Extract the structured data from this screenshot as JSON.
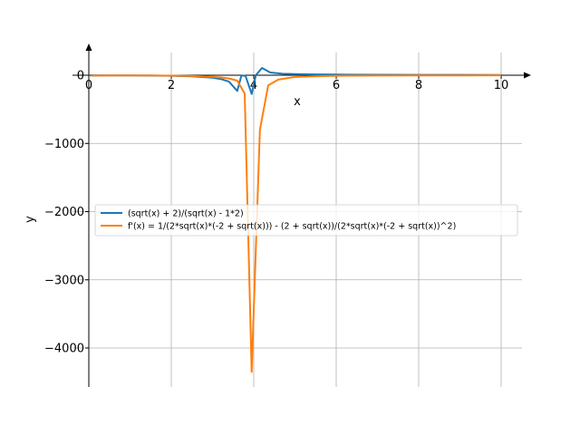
{
  "chart_data": {
    "type": "line",
    "title": "",
    "xlabel": "x",
    "ylabel": "y",
    "xlim": [
      0,
      10.5
    ],
    "ylim": [
      -4600,
      430
    ],
    "grid": true,
    "legend_position": "center-right",
    "x_ticks": [
      0,
      2,
      4,
      6,
      8,
      10
    ],
    "x_tick_labels": [
      "0",
      "2",
      "4",
      "6",
      "8",
      "10"
    ],
    "y_ticks": [
      0,
      -1000,
      -2000,
      -3000,
      -4000
    ],
    "y_tick_labels": [
      "0",
      "−1000",
      "−2000",
      "−3000",
      "−4000"
    ],
    "series": [
      {
        "name": "(sqrt(x) + 2)/(sqrt(x) - 1*2)",
        "color": "#1f77b4",
        "x": [
          0,
          0.5,
          1.0,
          1.5,
          2.0,
          2.5,
          3.0,
          3.2,
          3.4,
          3.6,
          3.7,
          3.8,
          3.95,
          4.05,
          4.2,
          4.4,
          4.7,
          5.0,
          5.5,
          6.0,
          7.0,
          8.0,
          9.0,
          10.0
        ],
        "y": [
          -1,
          -2.5,
          -3,
          -4.8,
          -8.2,
          -15.5,
          -37.3,
          -55.6,
          -94.8,
          -231.7,
          -4.2,
          -9.5,
          -275,
          0,
          106,
          39.9,
          21.5,
          16.1,
          11.5,
          9.1,
          6.7,
          5.4,
          5.0,
          4.6
        ]
      },
      {
        "name": "f'(x) = 1/(2*sqrt(x)*(-2 + sqrt(x))) - (2 + sqrt(x))/(2*sqrt(x)*(-2 + sqrt(x))^2)",
        "color": "#ff7f0e",
        "x": [
          0.05,
          0.5,
          1.0,
          1.5,
          2.0,
          2.5,
          3.0,
          3.2,
          3.4,
          3.6,
          3.78,
          3.95,
          4.15,
          4.35,
          4.6,
          5.0,
          5.5,
          6.0,
          7.0,
          8.0,
          9.0,
          10.0
        ],
        "y": [
          -6,
          -4,
          -2,
          -4,
          -7,
          -12,
          -22,
          -32,
          -48,
          -80,
          -270,
          -4350,
          -800,
          -150,
          -62,
          -25,
          -15,
          -8,
          -5,
          -3,
          -2,
          -1.5
        ]
      }
    ]
  }
}
